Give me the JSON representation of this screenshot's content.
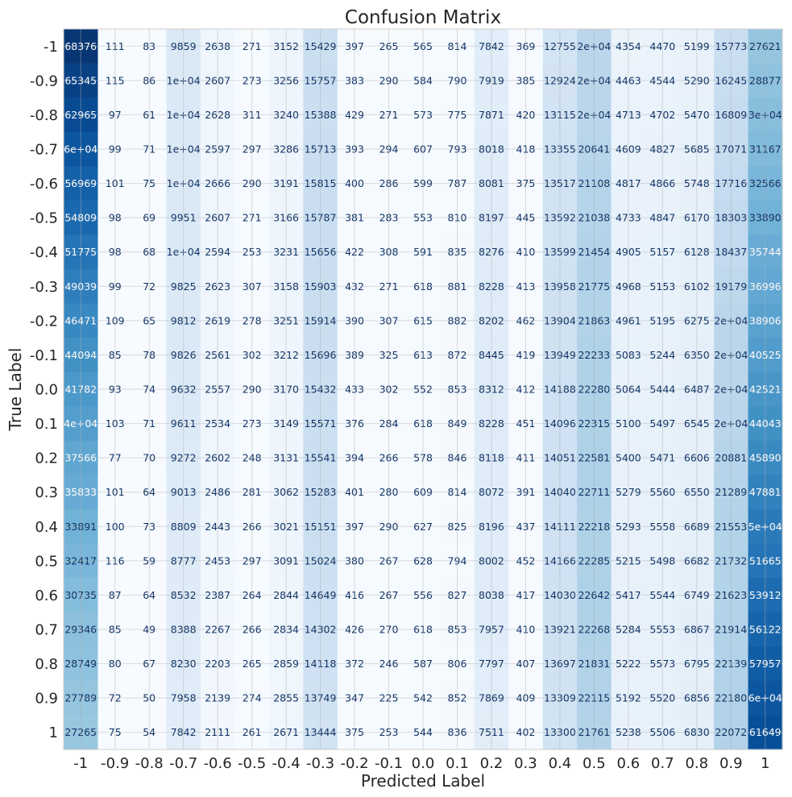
{
  "chart_data": {
    "type": "heatmap",
    "title": "Confusion Matrix",
    "xlabel": "Predicted Label",
    "ylabel": "True Label",
    "x_ticks": [
      "-1",
      "-0.9",
      "-0.8",
      "-0.7",
      "-0.6",
      "-0.5",
      "-0.4",
      "-0.3",
      "-0.2",
      "-0.1",
      "0.0",
      "0.1",
      "0.2",
      "0.3",
      "0.4",
      "0.5",
      "0.6",
      "0.7",
      "0.8",
      "0.9",
      "1"
    ],
    "y_ticks": [
      "-1",
      "-0.9",
      "-0.8",
      "-0.7",
      "-0.6",
      "-0.5",
      "-0.4",
      "-0.3",
      "-0.2",
      "-0.1",
      "0.0",
      "0.1",
      "0.2",
      "0.3",
      "0.4",
      "0.5",
      "0.6",
      "0.7",
      "0.8",
      "0.9",
      "1"
    ],
    "colormap": "Blues",
    "color_range": [
      0,
      70000
    ],
    "grid": true,
    "values": [
      [
        68376,
        111,
        83,
        9859,
        2638,
        271,
        3152,
        15429,
        397,
        265,
        565,
        814,
        7842,
        369,
        12755,
        20000,
        4354,
        4470,
        5199,
        15773,
        27621
      ],
      [
        65345,
        115,
        86,
        10000,
        2607,
        273,
        3256,
        15757,
        383,
        290,
        584,
        790,
        7919,
        385,
        12924,
        20000,
        4463,
        4544,
        5290,
        16245,
        28877
      ],
      [
        62965,
        97,
        61,
        10000,
        2628,
        311,
        3240,
        15388,
        429,
        271,
        573,
        775,
        7871,
        420,
        13115,
        20000,
        4713,
        4702,
        5470,
        16809,
        30000
      ],
      [
        60000,
        99,
        71,
        10000,
        2597,
        297,
        3286,
        15713,
        393,
        294,
        607,
        793,
        8018,
        418,
        13355,
        20641,
        4609,
        4827,
        5685,
        17071,
        31167
      ],
      [
        56969,
        101,
        75,
        10000,
        2666,
        290,
        3191,
        15815,
        400,
        286,
        599,
        787,
        8081,
        375,
        13517,
        21108,
        4817,
        4866,
        5748,
        17716,
        32566
      ],
      [
        54809,
        98,
        69,
        9951,
        2607,
        271,
        3166,
        15787,
        381,
        283,
        553,
        810,
        8197,
        445,
        13592,
        21038,
        4733,
        4847,
        6170,
        18303,
        33890
      ],
      [
        51775,
        98,
        68,
        10000,
        2594,
        253,
        3231,
        15656,
        422,
        308,
        591,
        835,
        8276,
        410,
        13599,
        21454,
        4905,
        5157,
        6128,
        18437,
        35744
      ],
      [
        49039,
        99,
        72,
        9825,
        2623,
        307,
        3158,
        15903,
        432,
        271,
        618,
        881,
        8228,
        413,
        13958,
        21775,
        4968,
        5153,
        6102,
        19179,
        36996
      ],
      [
        46471,
        109,
        65,
        9812,
        2619,
        278,
        3251,
        15914,
        390,
        307,
        615,
        882,
        8202,
        462,
        13904,
        21863,
        4961,
        5195,
        6275,
        20000,
        38906
      ],
      [
        44094,
        85,
        78,
        9826,
        2561,
        302,
        3212,
        15696,
        389,
        325,
        613,
        872,
        8445,
        419,
        13949,
        22233,
        5083,
        5244,
        6350,
        20000,
        40525
      ],
      [
        41782,
        93,
        74,
        9632,
        2557,
        290,
        3170,
        15432,
        433,
        302,
        552,
        853,
        8312,
        412,
        14188,
        22280,
        5064,
        5444,
        6487,
        20000,
        42521
      ],
      [
        40000,
        103,
        71,
        9611,
        2534,
        273,
        3149,
        15571,
        376,
        284,
        618,
        849,
        8228,
        451,
        14096,
        22315,
        5100,
        5497,
        6545,
        20000,
        44043
      ],
      [
        37566,
        77,
        70,
        9272,
        2602,
        248,
        3131,
        15541,
        394,
        266,
        578,
        846,
        8118,
        411,
        14051,
        22581,
        5400,
        5471,
        6606,
        20881,
        45890
      ],
      [
        35833,
        101,
        64,
        9013,
        2486,
        281,
        3062,
        15283,
        401,
        280,
        609,
        814,
        8072,
        391,
        14040,
        22711,
        5279,
        5560,
        6550,
        21289,
        47881
      ],
      [
        33891,
        100,
        73,
        8809,
        2443,
        266,
        3021,
        15151,
        397,
        290,
        627,
        825,
        8196,
        437,
        14111,
        22218,
        5293,
        5558,
        6689,
        21553,
        50000
      ],
      [
        32417,
        116,
        59,
        8777,
        2453,
        297,
        3091,
        15024,
        380,
        267,
        628,
        794,
        8002,
        452,
        14166,
        22285,
        5215,
        5498,
        6682,
        21732,
        51665
      ],
      [
        30735,
        87,
        64,
        8532,
        2387,
        264,
        2844,
        14649,
        416,
        267,
        556,
        827,
        8038,
        417,
        14030,
        22642,
        5417,
        5544,
        6749,
        21623,
        53912
      ],
      [
        29346,
        85,
        49,
        8388,
        2267,
        266,
        2834,
        14302,
        426,
        270,
        618,
        853,
        7957,
        410,
        13921,
        22268,
        5284,
        5553,
        6867,
        21914,
        56122
      ],
      [
        28749,
        80,
        67,
        8230,
        2203,
        265,
        2859,
        14118,
        372,
        246,
        587,
        806,
        7797,
        407,
        13697,
        21831,
        5222,
        5573,
        6795,
        22139,
        57957
      ],
      [
        27789,
        72,
        50,
        7958,
        2139,
        274,
        2855,
        13749,
        347,
        225,
        542,
        852,
        7869,
        409,
        13309,
        22115,
        5192,
        5520,
        6856,
        22180,
        60000
      ],
      [
        27265,
        75,
        54,
        7842,
        2111,
        261,
        2671,
        13444,
        375,
        253,
        544,
        836,
        7511,
        402,
        13300,
        21761,
        5238,
        5506,
        6830,
        22072,
        61649
      ]
    ],
    "labels": [
      [
        "68376",
        "111",
        "83",
        "9859",
        "2638",
        "271",
        "3152",
        "15429",
        "397",
        "265",
        "565",
        "814",
        "7842",
        "369",
        "12755",
        "2e+04",
        "4354",
        "4470",
        "5199",
        "15773",
        "27621"
      ],
      [
        "65345",
        "115",
        "86",
        "1e+04",
        "2607",
        "273",
        "3256",
        "15757",
        "383",
        "290",
        "584",
        "790",
        "7919",
        "385",
        "12924",
        "2e+04",
        "4463",
        "4544",
        "5290",
        "16245",
        "28877"
      ],
      [
        "62965",
        "97",
        "61",
        "1e+04",
        "2628",
        "311",
        "3240",
        "15388",
        "429",
        "271",
        "573",
        "775",
        "7871",
        "420",
        "13115",
        "2e+04",
        "4713",
        "4702",
        "5470",
        "16809",
        "3e+04"
      ],
      [
        "6e+04",
        "99",
        "71",
        "1e+04",
        "2597",
        "297",
        "3286",
        "15713",
        "393",
        "294",
        "607",
        "793",
        "8018",
        "418",
        "13355",
        "20641",
        "4609",
        "4827",
        "5685",
        "17071",
        "31167"
      ],
      [
        "56969",
        "101",
        "75",
        "1e+04",
        "2666",
        "290",
        "3191",
        "15815",
        "400",
        "286",
        "599",
        "787",
        "8081",
        "375",
        "13517",
        "21108",
        "4817",
        "4866",
        "5748",
        "17716",
        "32566"
      ],
      [
        "54809",
        "98",
        "69",
        "9951",
        "2607",
        "271",
        "3166",
        "15787",
        "381",
        "283",
        "553",
        "810",
        "8197",
        "445",
        "13592",
        "21038",
        "4733",
        "4847",
        "6170",
        "18303",
        "33890"
      ],
      [
        "51775",
        "98",
        "68",
        "1e+04",
        "2594",
        "253",
        "3231",
        "15656",
        "422",
        "308",
        "591",
        "835",
        "8276",
        "410",
        "13599",
        "21454",
        "4905",
        "5157",
        "6128",
        "18437",
        "35744"
      ],
      [
        "49039",
        "99",
        "72",
        "9825",
        "2623",
        "307",
        "3158",
        "15903",
        "432",
        "271",
        "618",
        "881",
        "8228",
        "413",
        "13958",
        "21775",
        "4968",
        "5153",
        "6102",
        "19179",
        "36996"
      ],
      [
        "46471",
        "109",
        "65",
        "9812",
        "2619",
        "278",
        "3251",
        "15914",
        "390",
        "307",
        "615",
        "882",
        "8202",
        "462",
        "13904",
        "21863",
        "4961",
        "5195",
        "6275",
        "2e+04",
        "38906"
      ],
      [
        "44094",
        "85",
        "78",
        "9826",
        "2561",
        "302",
        "3212",
        "15696",
        "389",
        "325",
        "613",
        "872",
        "8445",
        "419",
        "13949",
        "22233",
        "5083",
        "5244",
        "6350",
        "2e+04",
        "40525"
      ],
      [
        "41782",
        "93",
        "74",
        "9632",
        "2557",
        "290",
        "3170",
        "15432",
        "433",
        "302",
        "552",
        "853",
        "8312",
        "412",
        "14188",
        "22280",
        "5064",
        "5444",
        "6487",
        "2e+04",
        "42521"
      ],
      [
        "4e+04",
        "103",
        "71",
        "9611",
        "2534",
        "273",
        "3149",
        "15571",
        "376",
        "284",
        "618",
        "849",
        "8228",
        "451",
        "14096",
        "22315",
        "5100",
        "5497",
        "6545",
        "2e+04",
        "44043"
      ],
      [
        "37566",
        "77",
        "70",
        "9272",
        "2602",
        "248",
        "3131",
        "15541",
        "394",
        "266",
        "578",
        "846",
        "8118",
        "411",
        "14051",
        "22581",
        "5400",
        "5471",
        "6606",
        "20881",
        "45890"
      ],
      [
        "35833",
        "101",
        "64",
        "9013",
        "2486",
        "281",
        "3062",
        "15283",
        "401",
        "280",
        "609",
        "814",
        "8072",
        "391",
        "14040",
        "22711",
        "5279",
        "5560",
        "6550",
        "21289",
        "47881"
      ],
      [
        "33891",
        "100",
        "73",
        "8809",
        "2443",
        "266",
        "3021",
        "15151",
        "397",
        "290",
        "627",
        "825",
        "8196",
        "437",
        "14111",
        "22218",
        "5293",
        "5558",
        "6689",
        "21553",
        "5e+04"
      ],
      [
        "32417",
        "116",
        "59",
        "8777",
        "2453",
        "297",
        "3091",
        "15024",
        "380",
        "267",
        "628",
        "794",
        "8002",
        "452",
        "14166",
        "22285",
        "5215",
        "5498",
        "6682",
        "21732",
        "51665"
      ],
      [
        "30735",
        "87",
        "64",
        "8532",
        "2387",
        "264",
        "2844",
        "14649",
        "416",
        "267",
        "556",
        "827",
        "8038",
        "417",
        "14030",
        "22642",
        "5417",
        "5544",
        "6749",
        "21623",
        "53912"
      ],
      [
        "29346",
        "85",
        "49",
        "8388",
        "2267",
        "266",
        "2834",
        "14302",
        "426",
        "270",
        "618",
        "853",
        "7957",
        "410",
        "13921",
        "22268",
        "5284",
        "5553",
        "6867",
        "21914",
        "56122"
      ],
      [
        "28749",
        "80",
        "67",
        "8230",
        "2203",
        "265",
        "2859",
        "14118",
        "372",
        "246",
        "587",
        "806",
        "7797",
        "407",
        "13697",
        "21831",
        "5222",
        "5573",
        "6795",
        "22139",
        "57957"
      ],
      [
        "27789",
        "72",
        "50",
        "7958",
        "2139",
        "274",
        "2855",
        "13749",
        "347",
        "225",
        "542",
        "852",
        "7869",
        "409",
        "13309",
        "22115",
        "5192",
        "5520",
        "6856",
        "22180",
        "6e+04"
      ],
      [
        "27265",
        "75",
        "54",
        "7842",
        "2111",
        "261",
        "2671",
        "13444",
        "375",
        "253",
        "544",
        "836",
        "7511",
        "402",
        "13300",
        "21761",
        "5238",
        "5506",
        "6830",
        "22072",
        "61649"
      ]
    ]
  }
}
